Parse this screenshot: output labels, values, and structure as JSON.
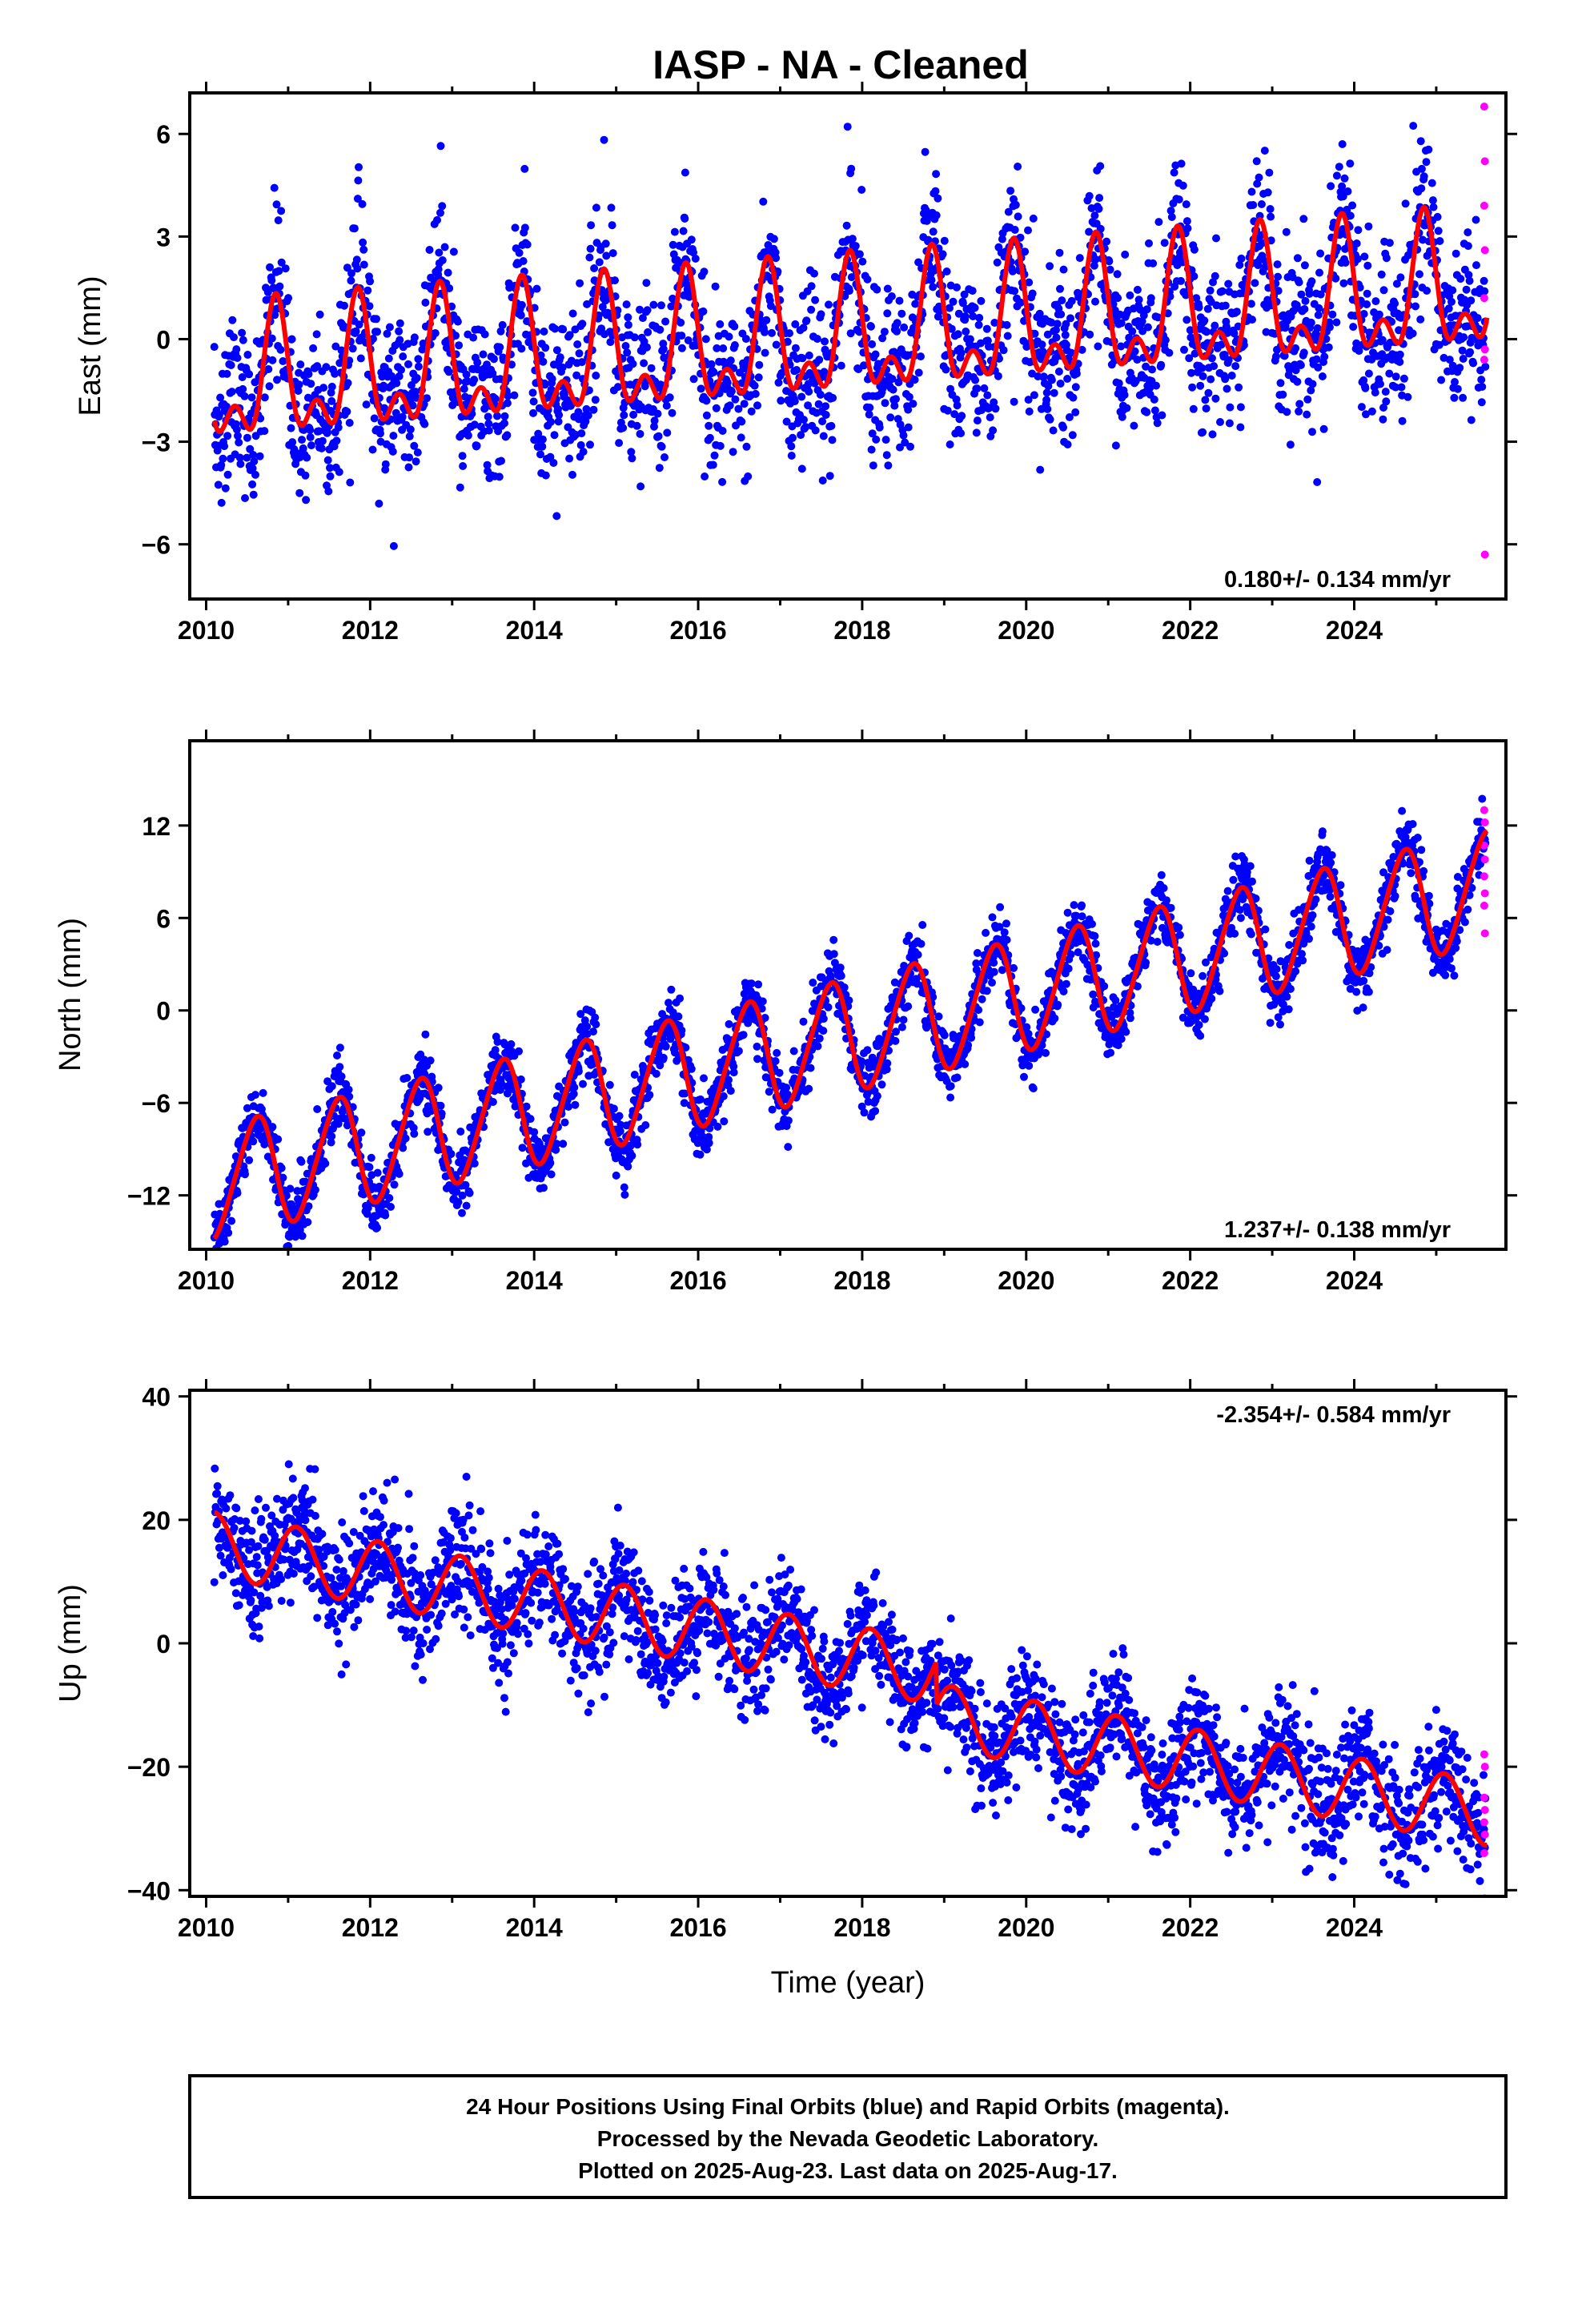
{
  "title": "IASP  - NA - Cleaned",
  "footer_lines": [
    "24 Hour Positions Using Final Orbits (blue) and Rapid Orbits (magenta).",
    "Processed by the Nevada Geodetic Laboratory.",
    "Plotted on 2025-Aug-23. Last data on 2025-Aug-17."
  ],
  "colors": {
    "final": "#0000ff",
    "rapid": "#ff00ff",
    "model": "#ff0000"
  },
  "chart_data": [
    {
      "type": "scatter",
      "component": "east",
      "ylabel": "East (mm)",
      "xlabel": "",
      "xlim": [
        2009.8,
        2025.85
      ],
      "ylim": [
        -7.6,
        7.2
      ],
      "xticks": [
        2010,
        2012,
        2014,
        2016,
        2018,
        2020,
        2022,
        2024
      ],
      "yticks": [
        -6,
        -3,
        0,
        3,
        6
      ],
      "rate_text": "0.180+/- 0.134 mm/yr",
      "model": {
        "offset": -1.4,
        "trend": 0.18,
        "annual_amp": 1.6,
        "annual_phase_deg": 180,
        "semiannual_amp": 1.0,
        "semiannual_phase_deg": -90,
        "scatter": 1.2
      },
      "rapid_y": [
        6.8,
        5.2,
        3.9,
        2.6,
        1.2,
        -0.3,
        -0.6,
        -6.3
      ],
      "series": [
        {
          "name": "Final Orbits",
          "color": "#0000ff"
        },
        {
          "name": "Rapid Orbits",
          "color": "#ff00ff"
        },
        {
          "name": "Model",
          "color": "#ff0000"
        }
      ]
    },
    {
      "type": "scatter",
      "component": "north",
      "ylabel": "North (mm)",
      "xlabel": "",
      "xlim": [
        2009.8,
        2025.85
      ],
      "ylim": [
        -15.5,
        17.5
      ],
      "xticks": [
        2010,
        2012,
        2014,
        2016,
        2018,
        2020,
        2022,
        2024
      ],
      "yticks": [
        -12,
        -6,
        0,
        6,
        12
      ],
      "rate_text": "1.237+/- 0.138 mm/yr",
      "model": {
        "offset": -11.2,
        "trend": 1.237,
        "annual_amp": 3.6,
        "annual_phase_deg": -90,
        "semiannual_amp": 0.4,
        "semiannual_phase_deg": 0,
        "scatter": 1.1
      },
      "rapid_y": [
        13.0,
        12.2,
        10.7,
        9.8,
        8.7,
        7.6,
        6.8,
        5.0
      ],
      "series": [
        {
          "name": "Final Orbits",
          "color": "#0000ff"
        },
        {
          "name": "Rapid Orbits",
          "color": "#ff00ff"
        },
        {
          "name": "Model",
          "color": "#ff0000"
        }
      ]
    },
    {
      "type": "scatter",
      "component": "up",
      "ylabel": "Up (mm)",
      "xlabel": "Time (year)",
      "xlim": [
        2009.8,
        2025.85
      ],
      "ylim": [
        -41,
        41
      ],
      "xticks": [
        2010,
        2012,
        2014,
        2016,
        2018,
        2020,
        2022,
        2024
      ],
      "yticks": [
        -40,
        -20,
        0,
        20,
        40
      ],
      "rate_text": "-2.354+/- 0.584 mm/yr",
      "model": {
        "offset": 16.0,
        "trend": -2.354,
        "annual_amp": 5.2,
        "annual_phase_deg": 90,
        "semiannual_amp": 0.0,
        "semiannual_phase_deg": 0,
        "scatter": 4.8,
        "step_year": 2018.9,
        "step_mm": -7.0
      },
      "rapid_y": [
        -18.0,
        -20.0,
        -25.0,
        -27.0,
        -29.0,
        -31.0,
        -34.0
      ],
      "series": [
        {
          "name": "Final Orbits",
          "color": "#0000ff"
        },
        {
          "name": "Rapid Orbits",
          "color": "#ff00ff"
        },
        {
          "name": "Model",
          "color": "#ff0000"
        }
      ]
    }
  ]
}
